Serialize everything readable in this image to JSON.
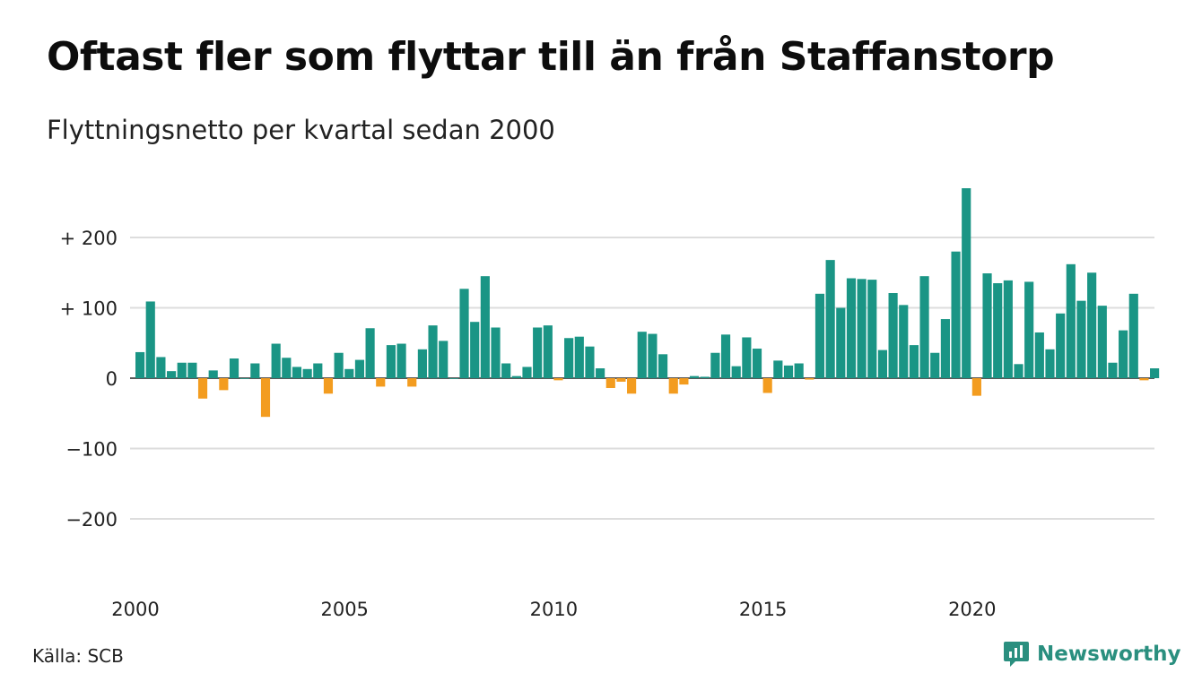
{
  "title": "Oftast fler som flyttar till än från Staffanstorp",
  "subtitle": "Flyttningsnetto per kvartal sedan 2000",
  "source": "Källa: SCB",
  "brand": "Newsworthy",
  "colors": {
    "positive": "#1a9585",
    "negative": "#f39c1f",
    "grid": "#dddddd",
    "brand": "#2a8f7f"
  },
  "chart_data": {
    "type": "bar",
    "x_start": "2000 Q1",
    "x_tick_labels": [
      "2000",
      "2005",
      "2010",
      "2015",
      "2020"
    ],
    "y_tick_labels": [
      "+ 200",
      "+ 100",
      "0",
      "−100",
      "−200"
    ],
    "y_ticks": [
      200,
      100,
      0,
      -100,
      -200
    ],
    "ylim": [
      -200,
      270
    ],
    "values": [
      37,
      109,
      30,
      10,
      22,
      22,
      -29,
      11,
      -17,
      28,
      0,
      21,
      -55,
      49,
      29,
      16,
      13,
      21,
      -22,
      36,
      13,
      26,
      71,
      -12,
      47,
      49,
      -12,
      41,
      75,
      53,
      0,
      127,
      80,
      145,
      72,
      21,
      3,
      16,
      72,
      75,
      -3,
      57,
      59,
      45,
      14,
      -14,
      -5,
      -22,
      66,
      63,
      34,
      -22,
      -9,
      3,
      2,
      36,
      62,
      17,
      58,
      42,
      -21,
      25,
      18,
      21,
      -2,
      120,
      168,
      100,
      142,
      141,
      140,
      40,
      121,
      104,
      47,
      145,
      36,
      84,
      180,
      270,
      -25,
      149,
      135,
      139,
      20,
      137,
      65,
      41,
      92,
      162,
      110,
      150,
      103,
      22,
      68,
      120,
      -3,
      14
    ],
    "grid": true
  }
}
